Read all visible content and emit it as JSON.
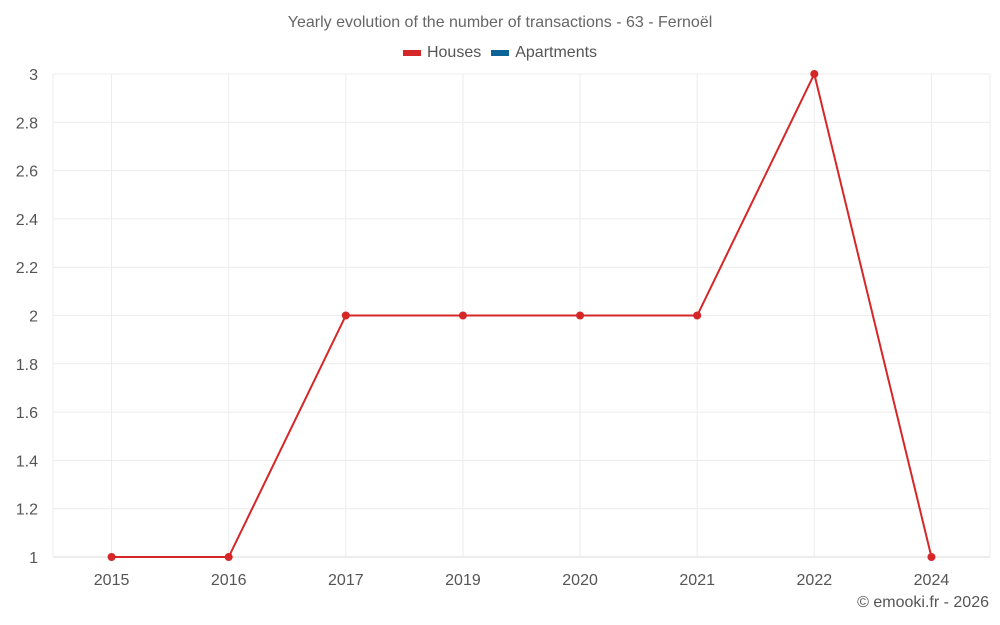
{
  "title": "Yearly evolution of the number of transactions - 63 - Fernoël",
  "legend": [
    {
      "label": "Houses",
      "color": "#d62728"
    },
    {
      "label": "Apartments",
      "color": "#0b6396"
    }
  ],
  "credit": "© emooki.fr - 2026",
  "chart_data": {
    "type": "line",
    "title": "Yearly evolution of the number of transactions - 63 - Fernoël",
    "xlabel": "",
    "ylabel": "",
    "categories": [
      "2015",
      "2016",
      "2017",
      "2019",
      "2020",
      "2021",
      "2022",
      "2024"
    ],
    "series": [
      {
        "name": "Houses",
        "color": "#d62728",
        "values": [
          1,
          1,
          2,
          2,
          2,
          2,
          3,
          1
        ]
      },
      {
        "name": "Apartments",
        "color": "#0b6396",
        "values": []
      }
    ],
    "ylim": [
      1,
      3
    ],
    "yticks": [
      "1",
      "1.2",
      "1.4",
      "1.6",
      "1.8",
      "2",
      "2.2",
      "2.4",
      "2.6",
      "2.8",
      "3"
    ],
    "grid": true,
    "legend_position": "top"
  }
}
